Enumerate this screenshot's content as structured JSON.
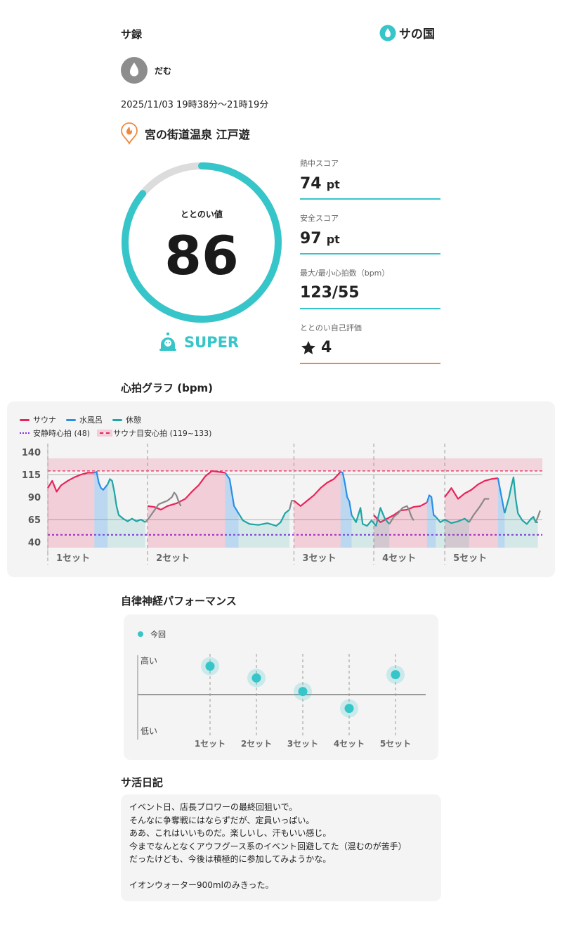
{
  "header": {
    "title": "サ録",
    "brand_name": "サの国"
  },
  "user": {
    "name": "だむ"
  },
  "session": {
    "datetime": "2025/11/03 19時38分〜21時19分",
    "facility": "宮の街道温泉 江戸遊"
  },
  "score": {
    "label": "ととのい値",
    "value": "86",
    "progress": 0.86,
    "rank": "SUPER"
  },
  "stats": [
    {
      "label": "熱中スコア",
      "value": "74",
      "unit": "pt"
    },
    {
      "label": "安全スコア",
      "value": "97",
      "unit": "pt"
    },
    {
      "label": "最大/最小心拍数（bpm）",
      "value": "123/55",
      "unit": ""
    },
    {
      "label": "ととのい自己評価",
      "value": "4",
      "unit": ""
    }
  ],
  "heart_section": {
    "title": "心拍グラフ (bpm)"
  },
  "heart_legend": {
    "sauna": "サウナ",
    "cold": "水風呂",
    "rest": "休憩",
    "resting": "安静時心拍 (48)",
    "target": "サウナ目安心拍 (119~133)"
  },
  "colors": {
    "accent": "#36c5c8",
    "sauna": "#e8245a",
    "cold": "#2a8ee8",
    "rest": "#1fa5a5",
    "resting": "#8a2be2",
    "star_line": "#f0883b"
  },
  "chart_data": [
    {
      "type": "line",
      "ylim": [
        40,
        140
      ],
      "yticks": [
        140,
        115,
        90,
        65,
        40
      ],
      "reference_lines": {
        "resting": 48,
        "target_range": [
          119,
          133
        ]
      },
      "set_labels": [
        "1セット",
        "2セット",
        "3セット",
        "4セット",
        "5セット"
      ],
      "series": [
        {
          "name": "サウナ",
          "segments": [
            [
              [
                0,
                100
              ],
              [
                2,
                108
              ],
              [
                4,
                96
              ],
              [
                6,
                103
              ],
              [
                9,
                108
              ],
              [
                12,
                112
              ],
              [
                15,
                115
              ],
              [
                18,
                117
              ],
              [
                21,
                117
              ]
            ],
            [
              [
                45,
                80
              ],
              [
                48,
                79
              ],
              [
                51,
                76
              ],
              [
                54,
                80
              ],
              [
                58,
                83
              ],
              [
                62,
                88
              ],
              [
                65,
                96
              ],
              [
                68,
                103
              ],
              [
                71,
                113
              ],
              [
                74,
                119
              ],
              [
                77,
                118
              ],
              [
                80,
                117
              ]
            ],
            [
              [
                111,
                86
              ],
              [
                114,
                80
              ],
              [
                117,
                86
              ],
              [
                120,
                92
              ],
              [
                123,
                100
              ],
              [
                126,
                106
              ],
              [
                129,
                110
              ],
              [
                132,
                118
              ]
            ],
            [
              [
                147,
                70
              ],
              [
                150,
                62
              ],
              [
                153,
                66
              ],
              [
                156,
                70
              ],
              [
                159,
                75
              ],
              [
                162,
                76
              ],
              [
                165,
                79
              ],
              [
                168,
                80
              ],
              [
                171,
                84
              ]
            ],
            [
              [
                179,
                90
              ],
              [
                182,
                100
              ],
              [
                185,
                88
              ],
              [
                188,
                94
              ],
              [
                191,
                98
              ],
              [
                194,
                104
              ],
              [
                197,
                108
              ],
              [
                200,
                110
              ],
              [
                203,
                111
              ]
            ]
          ]
        },
        {
          "name": "水風呂",
          "segments": [
            [
              [
                21,
                117
              ],
              [
                22,
                118
              ],
              [
                23,
                106
              ],
              [
                24,
                100
              ],
              [
                25,
                98
              ],
              [
                27,
                104
              ]
            ],
            [
              [
                80,
                117
              ],
              [
                82,
                110
              ],
              [
                84,
                80
              ],
              [
                86,
                72
              ]
            ],
            [
              [
                132,
                118
              ],
              [
                133,
                117
              ],
              [
                134,
                105
              ],
              [
                135,
                90
              ],
              [
                136,
                85
              ],
              [
                137,
                70
              ]
            ],
            [
              [
                171,
                84
              ],
              [
                172,
                92
              ],
              [
                173,
                90
              ],
              [
                174,
                70
              ],
              [
                175,
                68
              ]
            ],
            [
              [
                203,
                111
              ],
              [
                204,
                98
              ],
              [
                205,
                85
              ],
              [
                206,
                72
              ]
            ]
          ]
        },
        {
          "name": "休憩",
          "segments": [
            [
              [
                27,
                104
              ],
              [
                28,
                110
              ],
              [
                29,
                108
              ],
              [
                30,
                96
              ],
              [
                31,
                80
              ],
              [
                32,
                70
              ],
              [
                34,
                66
              ],
              [
                36,
                63
              ],
              [
                38,
                66
              ],
              [
                40,
                63
              ],
              [
                42,
                65
              ],
              [
                44,
                62
              ]
            ],
            [
              [
                86,
                72
              ],
              [
                88,
                64
              ],
              [
                91,
                60
              ],
              [
                95,
                59
              ],
              [
                99,
                61
              ],
              [
                103,
                58
              ],
              [
                105,
                62
              ],
              [
                107,
                72
              ],
              [
                109,
                76
              ]
            ],
            [
              [
                137,
                70
              ],
              [
                139,
                62
              ],
              [
                141,
                78
              ],
              [
                142,
                60
              ],
              [
                144,
                58
              ],
              [
                146,
                64
              ],
              [
                148,
                58
              ],
              [
                150,
                78
              ],
              [
                152,
                66
              ],
              [
                154,
                60
              ]
            ],
            [
              [
                175,
                68
              ],
              [
                177,
                62
              ],
              [
                179,
                65
              ],
              [
                182,
                61
              ],
              [
                185,
                63
              ],
              [
                188,
                66
              ],
              [
                190,
                62
              ]
            ],
            [
              [
                206,
                72
              ],
              [
                208,
                90
              ],
              [
                209,
                102
              ],
              [
                210,
                112
              ],
              [
                211,
                88
              ],
              [
                212,
                72
              ],
              [
                214,
                64
              ],
              [
                216,
                60
              ],
              [
                218,
                66
              ],
              [
                219,
                68
              ],
              [
                220,
                62
              ],
              [
                221,
                62
              ]
            ]
          ]
        },
        {
          "name": "other",
          "segments": [
            [
              [
                44,
                62
              ],
              [
                46,
                68
              ],
              [
                48,
                75
              ],
              [
                50,
                82
              ],
              [
                52,
                84
              ],
              [
                54,
                86
              ],
              [
                56,
                90
              ],
              [
                57,
                95
              ],
              [
                58,
                92
              ],
              [
                59,
                85
              ],
              [
                60,
                80
              ]
            ],
            [
              [
                109,
                76
              ],
              [
                110,
                86
              ],
              [
                111,
                86
              ]
            ],
            [
              [
                154,
                60
              ],
              [
                156,
                68
              ],
              [
                158,
                72
              ],
              [
                160,
                78
              ],
              [
                162,
                80
              ],
              [
                163,
                75
              ],
              [
                164,
                68
              ],
              [
                165,
                64
              ]
            ],
            [
              [
                190,
                62
              ],
              [
                192,
                70
              ],
              [
                195,
                80
              ],
              [
                197,
                88
              ],
              [
                199,
                88
              ]
            ],
            [
              [
                220,
                62
              ],
              [
                221,
                68
              ],
              [
                222,
                75
              ]
            ]
          ]
        }
      ]
    },
    {
      "type": "scatter",
      "legend": "今回",
      "ylabels": [
        "高い",
        "低い"
      ],
      "categories": [
        "1セット",
        "2セット",
        "3セット",
        "4セット",
        "5セット"
      ],
      "values": [
        0.82,
        0.68,
        0.52,
        0.32,
        0.72
      ]
    }
  ],
  "ans_section": {
    "title": "自律神経パフォーマンス",
    "legend": "今回",
    "high": "高い",
    "low": "低い"
  },
  "diary_section": {
    "title": "サ活日記",
    "lines": [
      "イベント日、店長ブロワーの最終回狙いで。",
      "そんなに争奪戦にはならずだが、定員いっぱい。",
      "ああ、これはいいものだ。楽しいし、汗もいい感じ。",
      "今までなんとなくアウフグース系のイベント回避してた（混むのが苦手）",
      "だったけども、今後は積極的に参加してみようかな。",
      "",
      "イオンウォーター900mlのみきった。"
    ]
  }
}
